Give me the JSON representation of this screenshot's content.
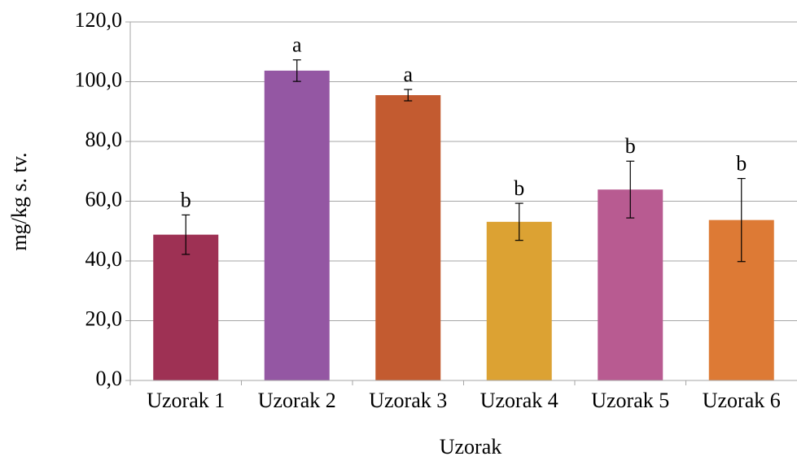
{
  "chart_data": {
    "type": "bar",
    "x_label": "Uzorak",
    "y_label": "mg/kg s. tv.",
    "categories": [
      "Uzorak 1",
      "Uzorak 2",
      "Uzorak 3",
      "Uzorak 4",
      "Uzorak 5",
      "Uzorak 6"
    ],
    "values": [
      48.8,
      103.7,
      95.5,
      53.1,
      63.9,
      53.7
    ],
    "errors": [
      6.6,
      3.6,
      1.9,
      6.2,
      9.5,
      13.9
    ],
    "annotations": [
      "b",
      "a",
      "a",
      "b",
      "b",
      "b"
    ],
    "colors": [
      "#9e3154",
      "#9457a3",
      "#c35b30",
      "#dca233",
      "#b85b91",
      "#dd7a35"
    ],
    "ylim": [
      0,
      120
    ],
    "yticks": [
      {
        "value": 0,
        "label": "0,0"
      },
      {
        "value": 20,
        "label": "20,0"
      },
      {
        "value": 40,
        "label": "40,0"
      },
      {
        "value": 60,
        "label": "60,0"
      },
      {
        "value": 80,
        "label": "80,0"
      },
      {
        "value": 100,
        "label": "100,0"
      },
      {
        "value": 120,
        "label": "120,0"
      }
    ],
    "grid": true
  }
}
